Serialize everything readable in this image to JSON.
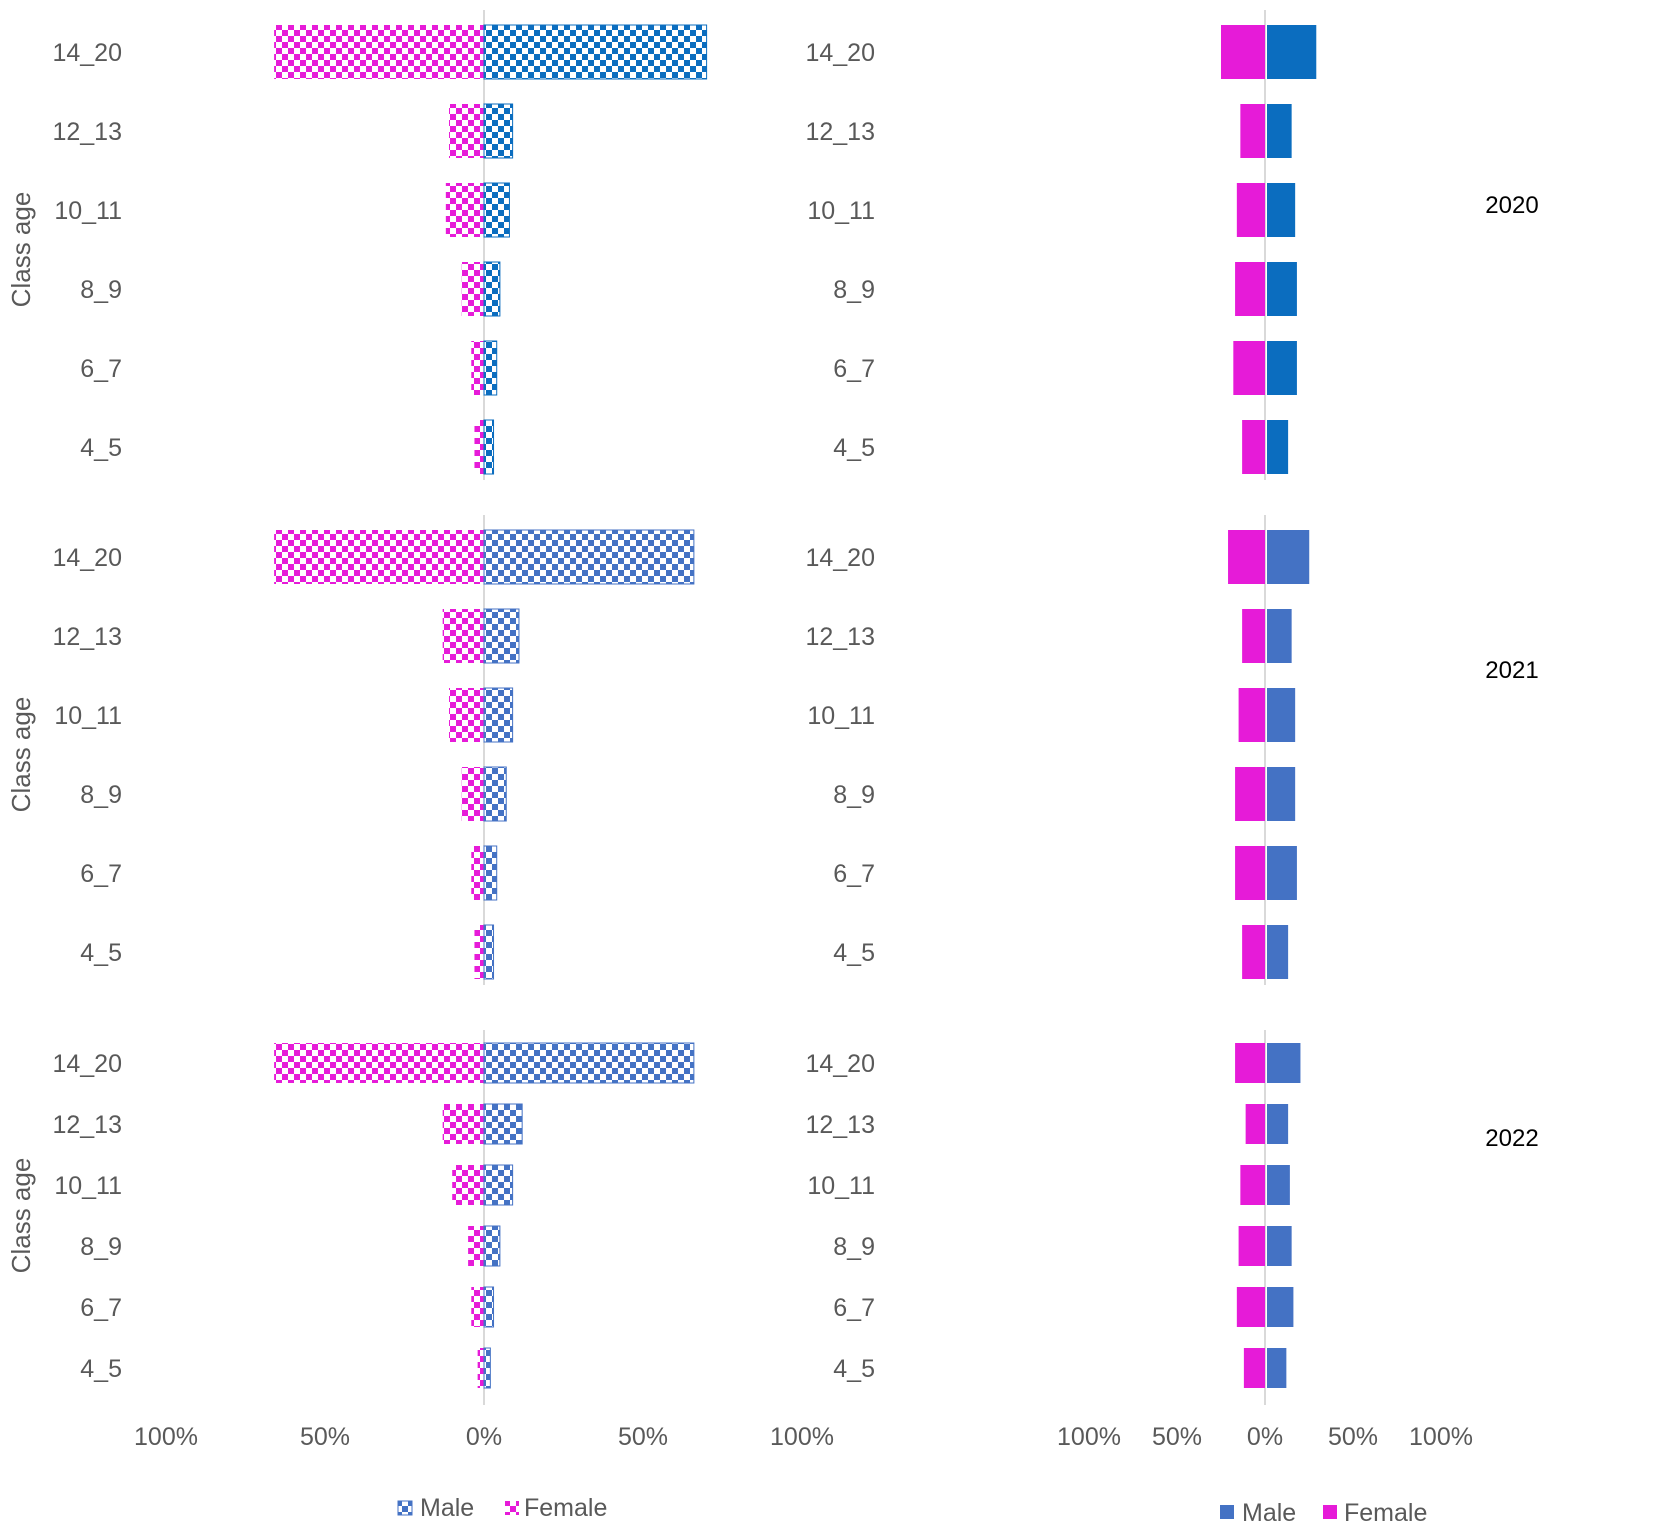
{
  "chart_data": {
    "type": "bar",
    "subtype": "population-pyramid",
    "categories": [
      "14_20",
      "12_13",
      "10_11",
      "8_9",
      "6_7",
      "4_5"
    ],
    "axis_label": "Class age",
    "x_ticks": [
      "100%",
      "50%",
      "0%",
      "50%",
      "100%"
    ],
    "xlim": [
      -100,
      100
    ],
    "colors": {
      "female": "#e61bd8",
      "male_2020": "#0b6dbf",
      "male_other": "#4472c4",
      "axis": "#d9d9d9",
      "label": "#595959"
    },
    "panels": [
      {
        "year": "2020",
        "left": {
          "female": [
            -66,
            -11,
            -12,
            -7,
            -4,
            -3
          ],
          "male": [
            70,
            9,
            8,
            5,
            4,
            3
          ]
        },
        "right": {
          "female": [
            -25,
            -14,
            -16,
            -17,
            -18,
            -13
          ],
          "male": [
            28,
            14,
            16,
            17,
            17,
            12
          ]
        }
      },
      {
        "year": "2021",
        "left": {
          "female": [
            -66,
            -13,
            -11,
            -7,
            -4,
            -3
          ],
          "male": [
            66,
            11,
            9,
            7,
            4,
            3
          ]
        },
        "right": {
          "female": [
            -21,
            -13,
            -15,
            -17,
            -17,
            -13
          ],
          "male": [
            24,
            14,
            16,
            16,
            17,
            12
          ]
        }
      },
      {
        "year": "2022",
        "left": {
          "female": [
            -66,
            -13,
            -10,
            -5,
            -4,
            -2
          ],
          "male": [
            66,
            12,
            9,
            5,
            3,
            2
          ]
        },
        "right": {
          "female": [
            -17,
            -11,
            -14,
            -15,
            -16,
            -12
          ],
          "male": [
            19,
            12,
            13,
            14,
            15,
            11
          ]
        }
      }
    ],
    "legend": {
      "left": [
        "Male",
        "Female"
      ],
      "right": [
        "Male",
        "Female"
      ]
    }
  }
}
